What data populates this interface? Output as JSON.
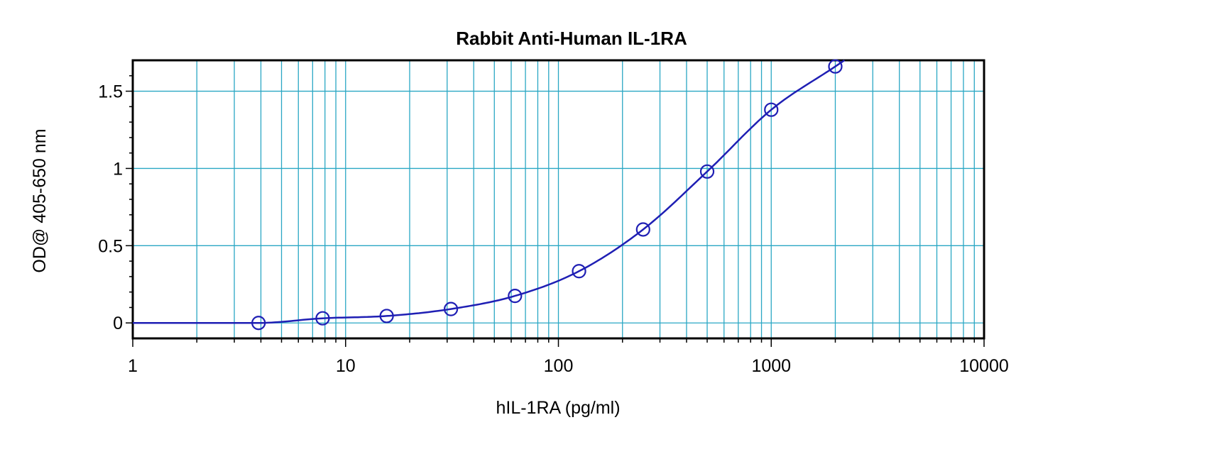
{
  "chart_data": {
    "type": "scatter",
    "title": "Rabbit Anti-Human IL-1RA",
    "xlabel": "hIL-1RA (pg/ml)",
    "ylabel": "OD@ 405-650 nm",
    "x_scale": "log",
    "xlim": [
      1,
      10000
    ],
    "ylim": [
      -0.1,
      1.7
    ],
    "x_ticks": [
      1,
      10,
      100,
      1000,
      10000
    ],
    "x_tick_labels": [
      "1",
      "10",
      "100",
      "1000",
      "10000"
    ],
    "y_ticks": [
      0,
      0.5,
      1,
      1.5
    ],
    "y_tick_labels": [
      "0",
      "0.5",
      "1",
      "1.5"
    ],
    "grid": true,
    "series": [
      {
        "markers": "open-circle",
        "with_fit_curve": true,
        "x": [
          3.9,
          7.8,
          15.6,
          31.25,
          62.5,
          125,
          250,
          500,
          1000,
          2000
        ],
        "y": [
          0.0,
          0.03,
          0.045,
          0.09,
          0.175,
          0.335,
          0.605,
          0.98,
          1.38,
          1.66
        ]
      }
    ],
    "colors": {
      "grid": "#2aa7c4",
      "series": "#1f1fb4",
      "frame": "#000000"
    }
  }
}
